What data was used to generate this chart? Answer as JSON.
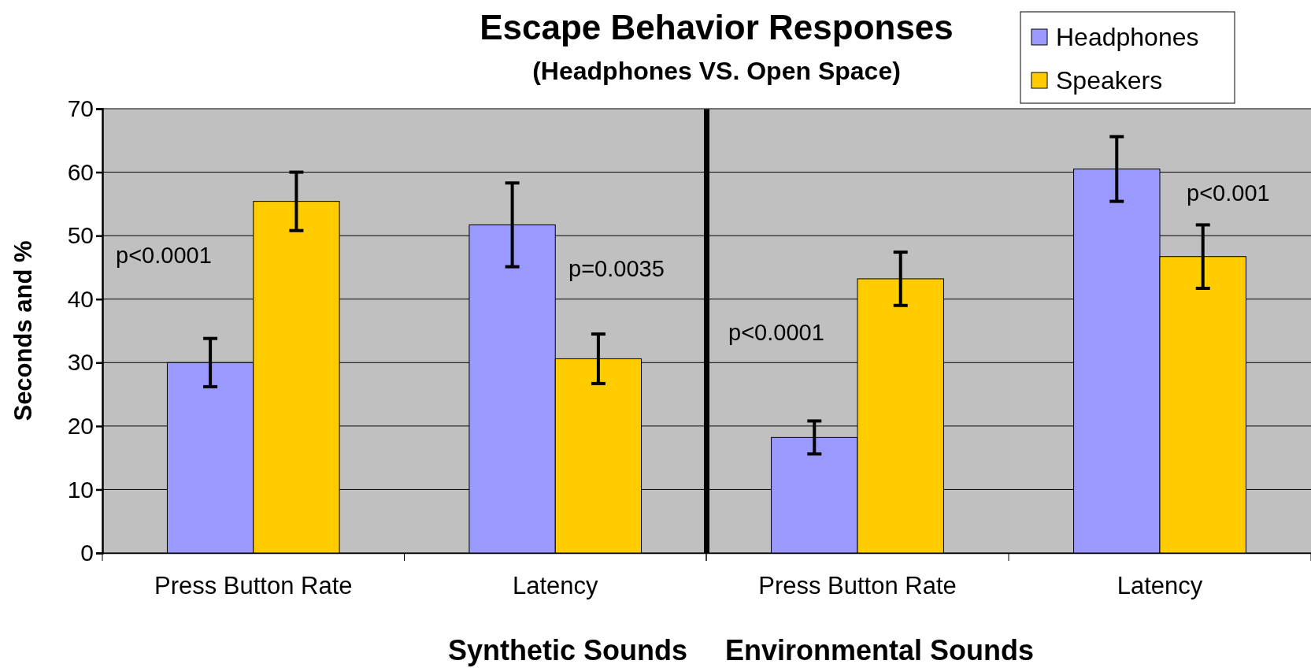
{
  "chart_data": [
    {
      "type": "bar",
      "title": "Escape Behavior Responses",
      "subtitle": "(Headphones VS. Open Space)",
      "ylabel": "Seconds and %",
      "xlabel": "Synthetic Sounds",
      "categories": [
        "Press Button Rate",
        "Latency"
      ],
      "series": [
        {
          "color": "#9999ff",
          "values": [
            30,
            51.7
          ],
          "errors": [
            3.8,
            6.6
          ]
        },
        {
          "color": "#ffcc00",
          "values": [
            55.4,
            30.6
          ],
          "errors": [
            4.6,
            3.9
          ]
        }
      ],
      "ylim": [
        0,
        70
      ],
      "yticks": [
        0,
        10,
        20,
        30,
        40,
        50,
        60,
        70
      ],
      "grid": "y",
      "annotations": [
        "p<0.0001",
        "p=0.0035"
      ]
    },
    {
      "type": "bar",
      "xlabel": "Environmental Sounds",
      "categories": [
        "Press Button Rate",
        "Latency"
      ],
      "series": [
        {
          "name": "Headphones",
          "color": "#9999ff",
          "values": [
            18.2,
            60.5
          ],
          "errors": [
            2.6,
            5.1
          ]
        },
        {
          "name": "Speakers",
          "color": "#ffcc00",
          "values": [
            43.2,
            46.7
          ],
          "errors": [
            4.2,
            5.0
          ]
        }
      ],
      "ylim": [
        0,
        70
      ],
      "yticks": [
        0,
        10,
        20,
        30,
        40,
        50,
        60,
        70
      ],
      "grid": "y",
      "tick_labels": "x",
      "legend": "top right",
      "annotations": [
        "p<0.0001",
        "p<0.001"
      ]
    }
  ]
}
